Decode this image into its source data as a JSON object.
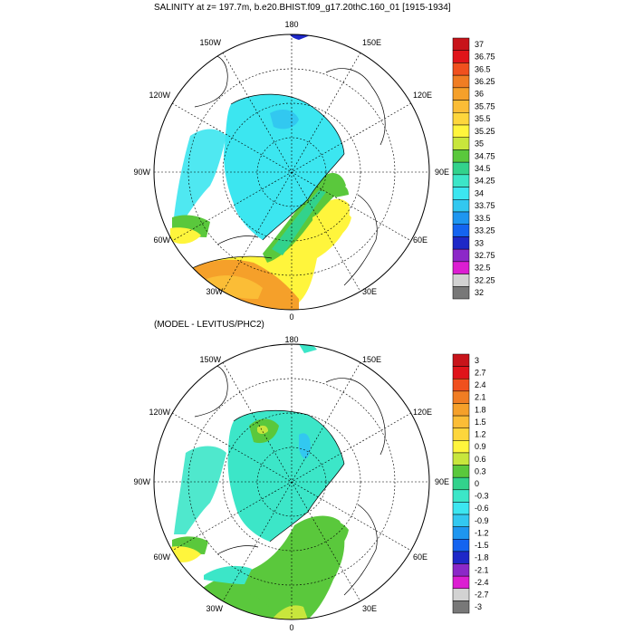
{
  "maps": [
    {
      "title": "SALINITY at z= 197.7m, b.e20.BHIST.f09_g17.20thC.160_01 [1915-1934]",
      "lon_labels": {
        "top": "180",
        "bottom": "0",
        "left": "90W",
        "right": "90E",
        "ul1": "150W",
        "ul2": "120W",
        "ll1": "60W",
        "ll2": "30W",
        "ur1": "150E",
        "ur2": "120E",
        "lr1": "60E",
        "lr2": "30E"
      },
      "colorbar": {
        "labels": [
          "37",
          "36.75",
          "36.5",
          "36.25",
          "36",
          "35.75",
          "35.5",
          "35.25",
          "35",
          "34.75",
          "34.5",
          "34.25",
          "34",
          "33.75",
          "33.5",
          "33.25",
          "33",
          "32.75",
          "32.5",
          "32.25",
          "32"
        ],
        "colors": [
          "#c8141a",
          "#e0141a",
          "#f0501e",
          "#f07d23",
          "#f5a02a",
          "#fbbd36",
          "#fdd63c",
          "#fff53c",
          "#c8e63c",
          "#5ac83c",
          "#32d28c",
          "#3ce6c8",
          "#3ce6f0",
          "#32c8f0",
          "#1e96f0",
          "#1464f0",
          "#1e28c8",
          "#8c28c8",
          "#dc1ed2",
          "#d2d2d2",
          "#787878"
        ]
      }
    },
    {
      "title": "(MODEL - LEVITUS/PHC2)",
      "lon_labels": {
        "top": "180",
        "bottom": "0",
        "left": "90W",
        "right": "90E",
        "ul1": "150W",
        "ul2": "120W",
        "ll1": "60W",
        "ll2": "30W",
        "ur1": "150E",
        "ur2": "120E",
        "lr1": "60E",
        "lr2": "30E"
      },
      "colorbar": {
        "labels": [
          "3",
          "2.7",
          "2.4",
          "2.1",
          "1.8",
          "1.5",
          "1.2",
          "0.9",
          "0.6",
          "0.3",
          "0",
          "-0.3",
          "-0.6",
          "-0.9",
          "-1.2",
          "-1.5",
          "-1.8",
          "-2.1",
          "-2.4",
          "-2.7",
          "-3"
        ],
        "colors": [
          "#c8141a",
          "#e0141a",
          "#f0501e",
          "#f07d23",
          "#f5a02a",
          "#fbbd36",
          "#fdd63c",
          "#fff53c",
          "#c8e63c",
          "#5ac83c",
          "#32d28c",
          "#3ce6c8",
          "#3ce6f0",
          "#32c8f0",
          "#1e96f0",
          "#1464f0",
          "#1e28c8",
          "#8c28c8",
          "#dc1ed2",
          "#d2d2d2",
          "#787878"
        ]
      }
    }
  ]
}
